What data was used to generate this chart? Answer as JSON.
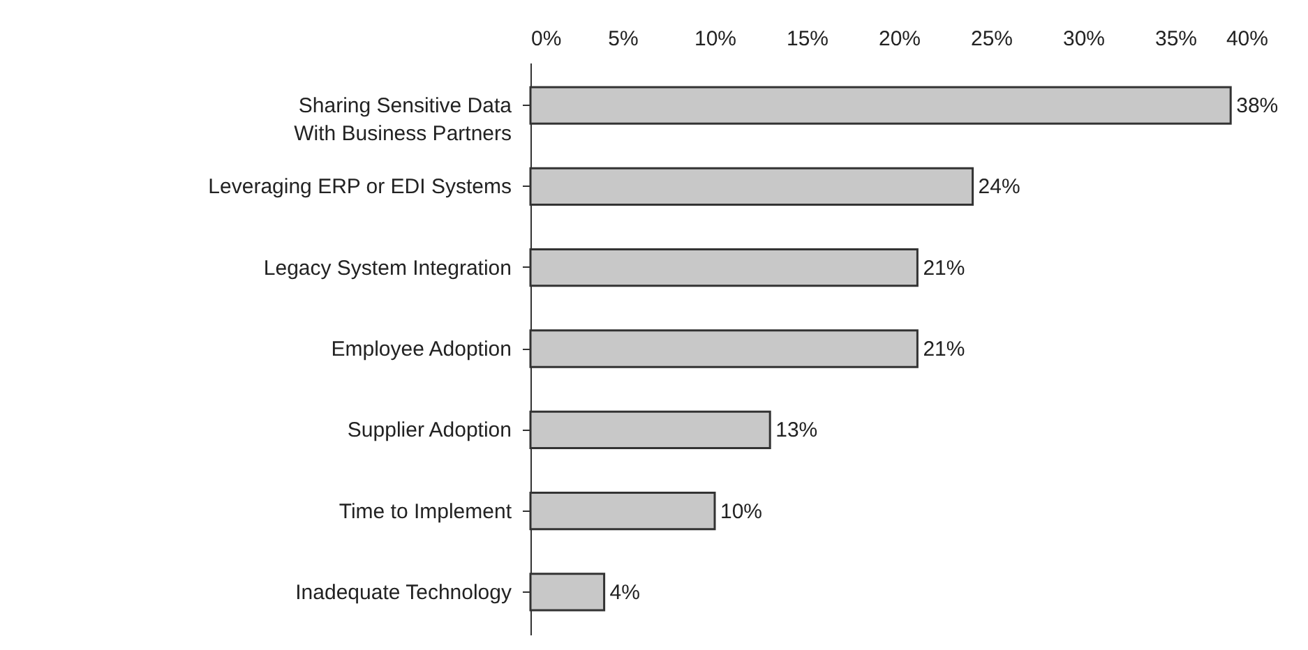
{
  "chart_data": {
    "type": "bar",
    "orientation": "horizontal",
    "categories": [
      "Sharing Sensitive Data\nWith Business Partners",
      "Leveraging ERP or EDI Systems",
      "Legacy System Integration",
      "Employee Adoption",
      "Supplier Adoption",
      "Time to Implement",
      "Inadequate Technology"
    ],
    "values": [
      38,
      24,
      21,
      21,
      13,
      10,
      4
    ],
    "value_labels": [
      "38%",
      "24%",
      "21%",
      "21%",
      "13%",
      "10%",
      "4%"
    ],
    "color": "#c8c8c8",
    "xlim": [
      0,
      40
    ],
    "xticks": [
      {
        "value": 0,
        "label": "0%"
      },
      {
        "value": 5,
        "label": "5%"
      },
      {
        "value": 10,
        "label": "10%"
      },
      {
        "value": 15,
        "label": "15%"
      },
      {
        "value": 20,
        "label": "20%"
      },
      {
        "value": 25,
        "label": "25%"
      },
      {
        "value": 30,
        "label": "30%"
      },
      {
        "value": 35,
        "label": "35%"
      },
      {
        "value": 40,
        "label": "40%"
      }
    ],
    "grid": false
  }
}
